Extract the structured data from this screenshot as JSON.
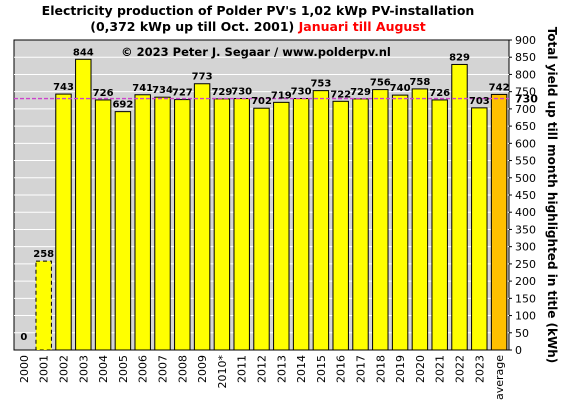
{
  "chart_data": {
    "type": "bar",
    "title_line1": "Electricity production  of Polder  PV's  1,02 kWp PV-installation",
    "title_line2_black": "(0,372 kWp up till Oct. 2001)",
    "title_line2_red": "Januari till August",
    "copyright": "© 2023 Peter J. Segaar / www.polderpv.nl",
    "ylabel": "Total yield up till month highlighted in title (kWh)",
    "ylim": [
      0,
      900
    ],
    "ytick_step": 50,
    "grid": "horizontal",
    "categories": [
      "2000",
      "2001",
      "2002",
      "2003",
      "2004",
      "2005",
      "2006",
      "2007",
      "2008",
      "2009",
      "2010*",
      "2011",
      "2012",
      "2013",
      "2014",
      "2015",
      "2016",
      "2017",
      "2018",
      "2019",
      "2020",
      "2021",
      "2022",
      "2023",
      "average"
    ],
    "values": [
      0,
      258,
      743,
      844,
      726,
      692,
      741,
      734,
      727,
      773,
      729,
      730,
      702,
      719,
      730,
      753,
      722,
      729,
      756,
      740,
      758,
      726,
      829,
      703,
      742
    ],
    "bar_kind": [
      "normal",
      "partial",
      "normal",
      "normal",
      "normal",
      "normal",
      "normal",
      "normal",
      "normal",
      "normal",
      "normal",
      "normal",
      "normal",
      "normal",
      "normal",
      "normal",
      "normal",
      "normal",
      "normal",
      "normal",
      "normal",
      "normal",
      "normal",
      "normal",
      "average"
    ],
    "reference_line": {
      "value": 730,
      "label": "730"
    },
    "colors": {
      "plot_bg": "#d4d4d4",
      "bar_fill": "#ffff00",
      "average_fill": "#ffc000",
      "reference_line": "#cc44cc",
      "grid": "#ffffff",
      "partial_label": "#808080",
      "average_label": "#ff0000",
      "reference_label": "#ff00ff"
    }
  }
}
